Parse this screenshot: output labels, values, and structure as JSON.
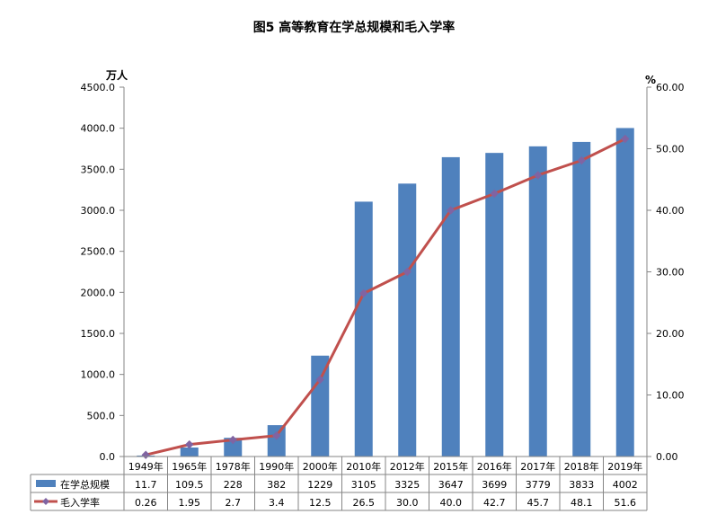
{
  "chart_data": {
    "type": "bar",
    "title": "图5 高等教育在学总规模和毛入学率",
    "categories": [
      "1949年",
      "1965年",
      "1978年",
      "1990年",
      "2000年",
      "2010年",
      "2012年",
      "2015年",
      "2016年",
      "2017年",
      "2018年",
      "2019年"
    ],
    "series": [
      {
        "name": "在学总规模",
        "type": "bar",
        "axis": "left",
        "color": "#4f81bd",
        "values": [
          11.7,
          109.5,
          228,
          382,
          1229,
          3105,
          3325,
          3647,
          3699,
          3779,
          3833,
          4002
        ],
        "labels": [
          "11.7",
          "109.5",
          "228",
          "382",
          "1229",
          "3105",
          "3325",
          "3647",
          "3699",
          "3779",
          "3833",
          "4002"
        ]
      },
      {
        "name": "毛入学率",
        "type": "line",
        "axis": "right",
        "color": "#c0504d",
        "marker_color": "#8064a2",
        "values": [
          0.26,
          1.95,
          2.7,
          3.4,
          12.5,
          26.5,
          30.0,
          40.0,
          42.7,
          45.7,
          48.1,
          51.6
        ],
        "labels": [
          "0.26",
          "1.95",
          "2.7",
          "3.4",
          "12.5",
          "26.5",
          "30.0",
          "40.0",
          "42.7",
          "45.7",
          "48.1",
          "51.6"
        ]
      }
    ],
    "y_left": {
      "unit": "万人",
      "ylim": [
        0,
        4500
      ],
      "ticks": [
        "0.0",
        "500.0",
        "1000.0",
        "1500.0",
        "2000.0",
        "2500.0",
        "3000.0",
        "3500.0",
        "4000.0",
        "4500.0"
      ]
    },
    "y_right": {
      "unit": "%",
      "ylim": [
        0,
        60
      ],
      "ticks": [
        "0.00",
        "10.00",
        "20.00",
        "30.00",
        "40.00",
        "50.00",
        "60.00"
      ]
    },
    "grid": false,
    "legend": "data-table"
  }
}
